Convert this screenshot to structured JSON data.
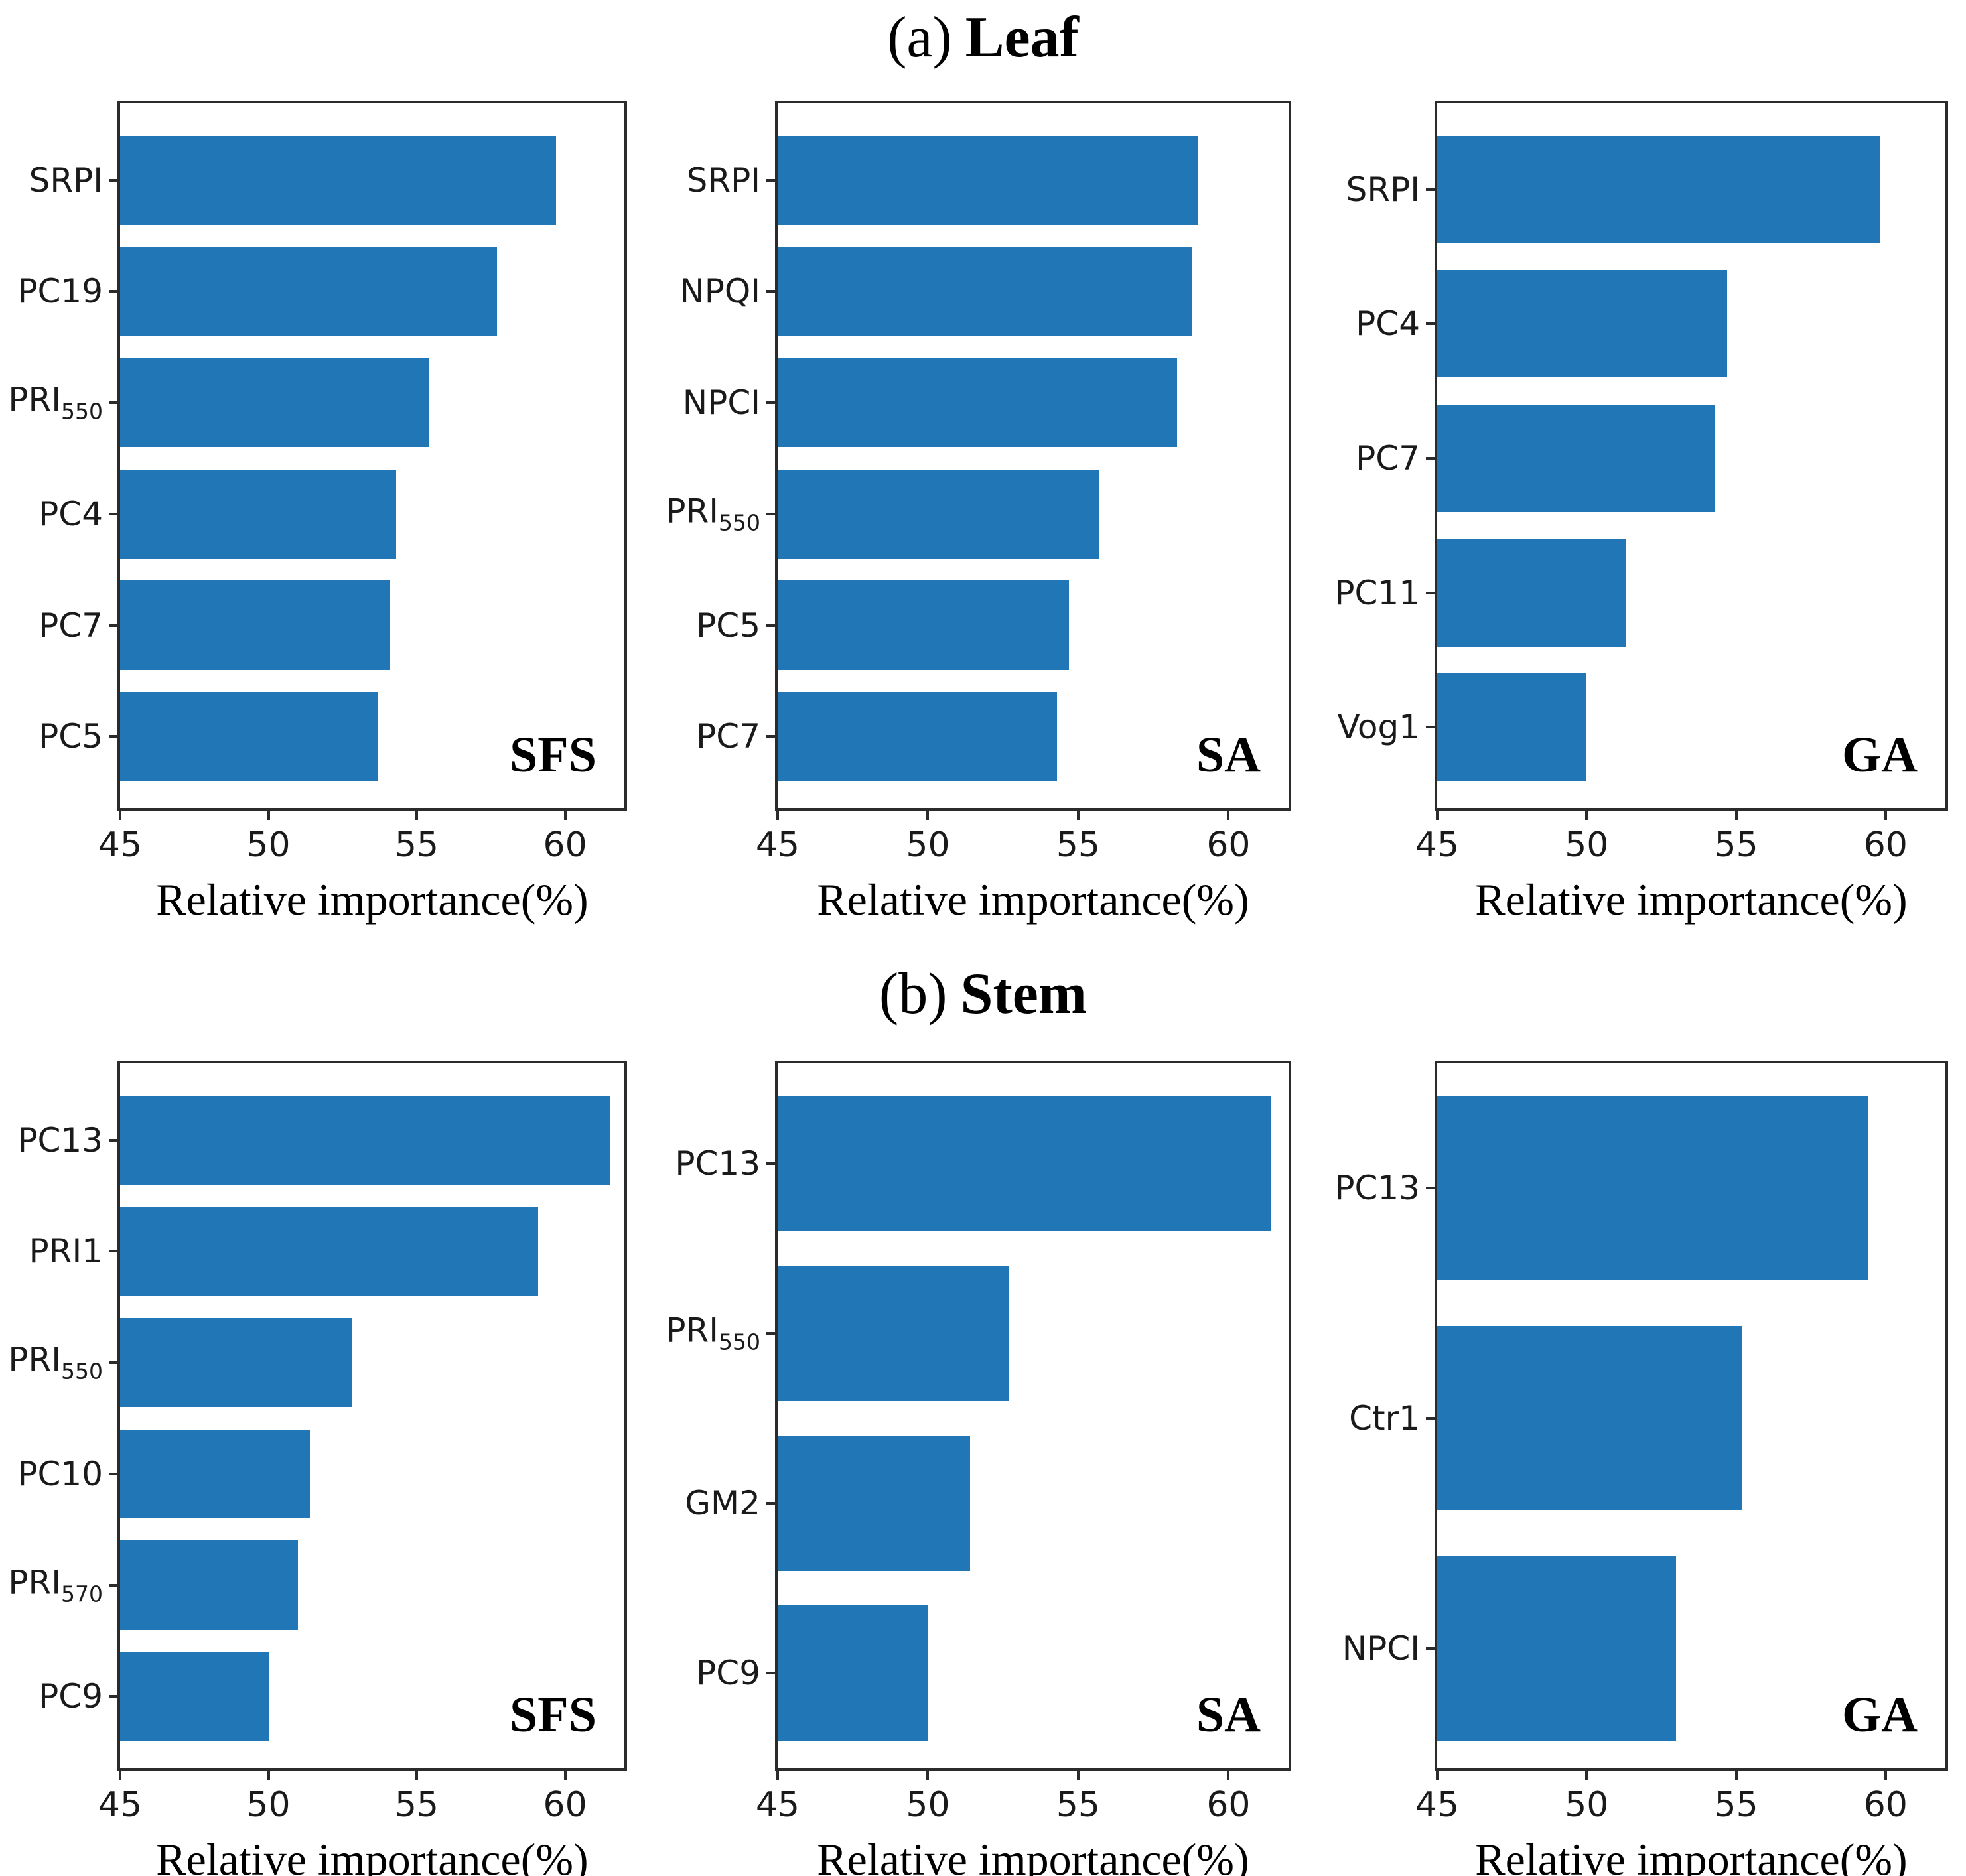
{
  "chart_data": {
    "type": "bar",
    "orientation": "horizontal",
    "bar_color": "#2177b5",
    "axis_color": "#2b2b2b",
    "grid": false,
    "xlabel": "Relative importance(%)",
    "xlim": [
      45,
      62
    ],
    "xticks": [
      45,
      50,
      55,
      60
    ],
    "panels": [
      {
        "label": "(a)",
        "name": "Leaf",
        "charts": [
          {
            "method": "SFS",
            "categories": [
              {
                "text": "SRPI"
              },
              {
                "text": "PC19"
              },
              {
                "text": "PRI",
                "sub": "550"
              },
              {
                "text": "PC4"
              },
              {
                "text": "PC7"
              },
              {
                "text": "PC5"
              }
            ],
            "values": [
              59.7,
              57.7,
              55.4,
              54.3,
              54.1,
              53.7
            ]
          },
          {
            "method": "SA",
            "categories": [
              {
                "text": "SRPI"
              },
              {
                "text": "NPQI"
              },
              {
                "text": "NPCI"
              },
              {
                "text": "PRI",
                "sub": "550"
              },
              {
                "text": "PC5"
              },
              {
                "text": "PC7"
              }
            ],
            "values": [
              59.0,
              58.8,
              58.3,
              55.7,
              54.7,
              54.3
            ]
          },
          {
            "method": "GA",
            "categories": [
              {
                "text": "SRPI"
              },
              {
                "text": "PC4"
              },
              {
                "text": "PC7"
              },
              {
                "text": "PC11"
              },
              {
                "text": "Vog1"
              }
            ],
            "values": [
              59.8,
              54.7,
              54.3,
              51.3,
              50.0
            ]
          }
        ]
      },
      {
        "label": "(b)",
        "name": "Stem",
        "charts": [
          {
            "method": "SFS",
            "categories": [
              {
                "text": "PC13"
              },
              {
                "text": "PRI1"
              },
              {
                "text": "PRI",
                "sub": "550"
              },
              {
                "text": "PC10"
              },
              {
                "text": "PRI",
                "sub": "570"
              },
              {
                "text": "PC9"
              }
            ],
            "values": [
              61.5,
              59.1,
              52.8,
              51.4,
              51.0,
              50.0
            ]
          },
          {
            "method": "SA",
            "categories": [
              {
                "text": "PC13"
              },
              {
                "text": "PRI",
                "sub": "550"
              },
              {
                "text": "GM2"
              },
              {
                "text": "PC9"
              }
            ],
            "values": [
              61.4,
              52.7,
              51.4,
              50.0
            ]
          },
          {
            "method": "GA",
            "categories": [
              {
                "text": "PC13"
              },
              {
                "text": "Ctr1"
              },
              {
                "text": "NPCI"
              }
            ],
            "values": [
              59.4,
              55.2,
              53.0
            ]
          }
        ]
      }
    ]
  }
}
